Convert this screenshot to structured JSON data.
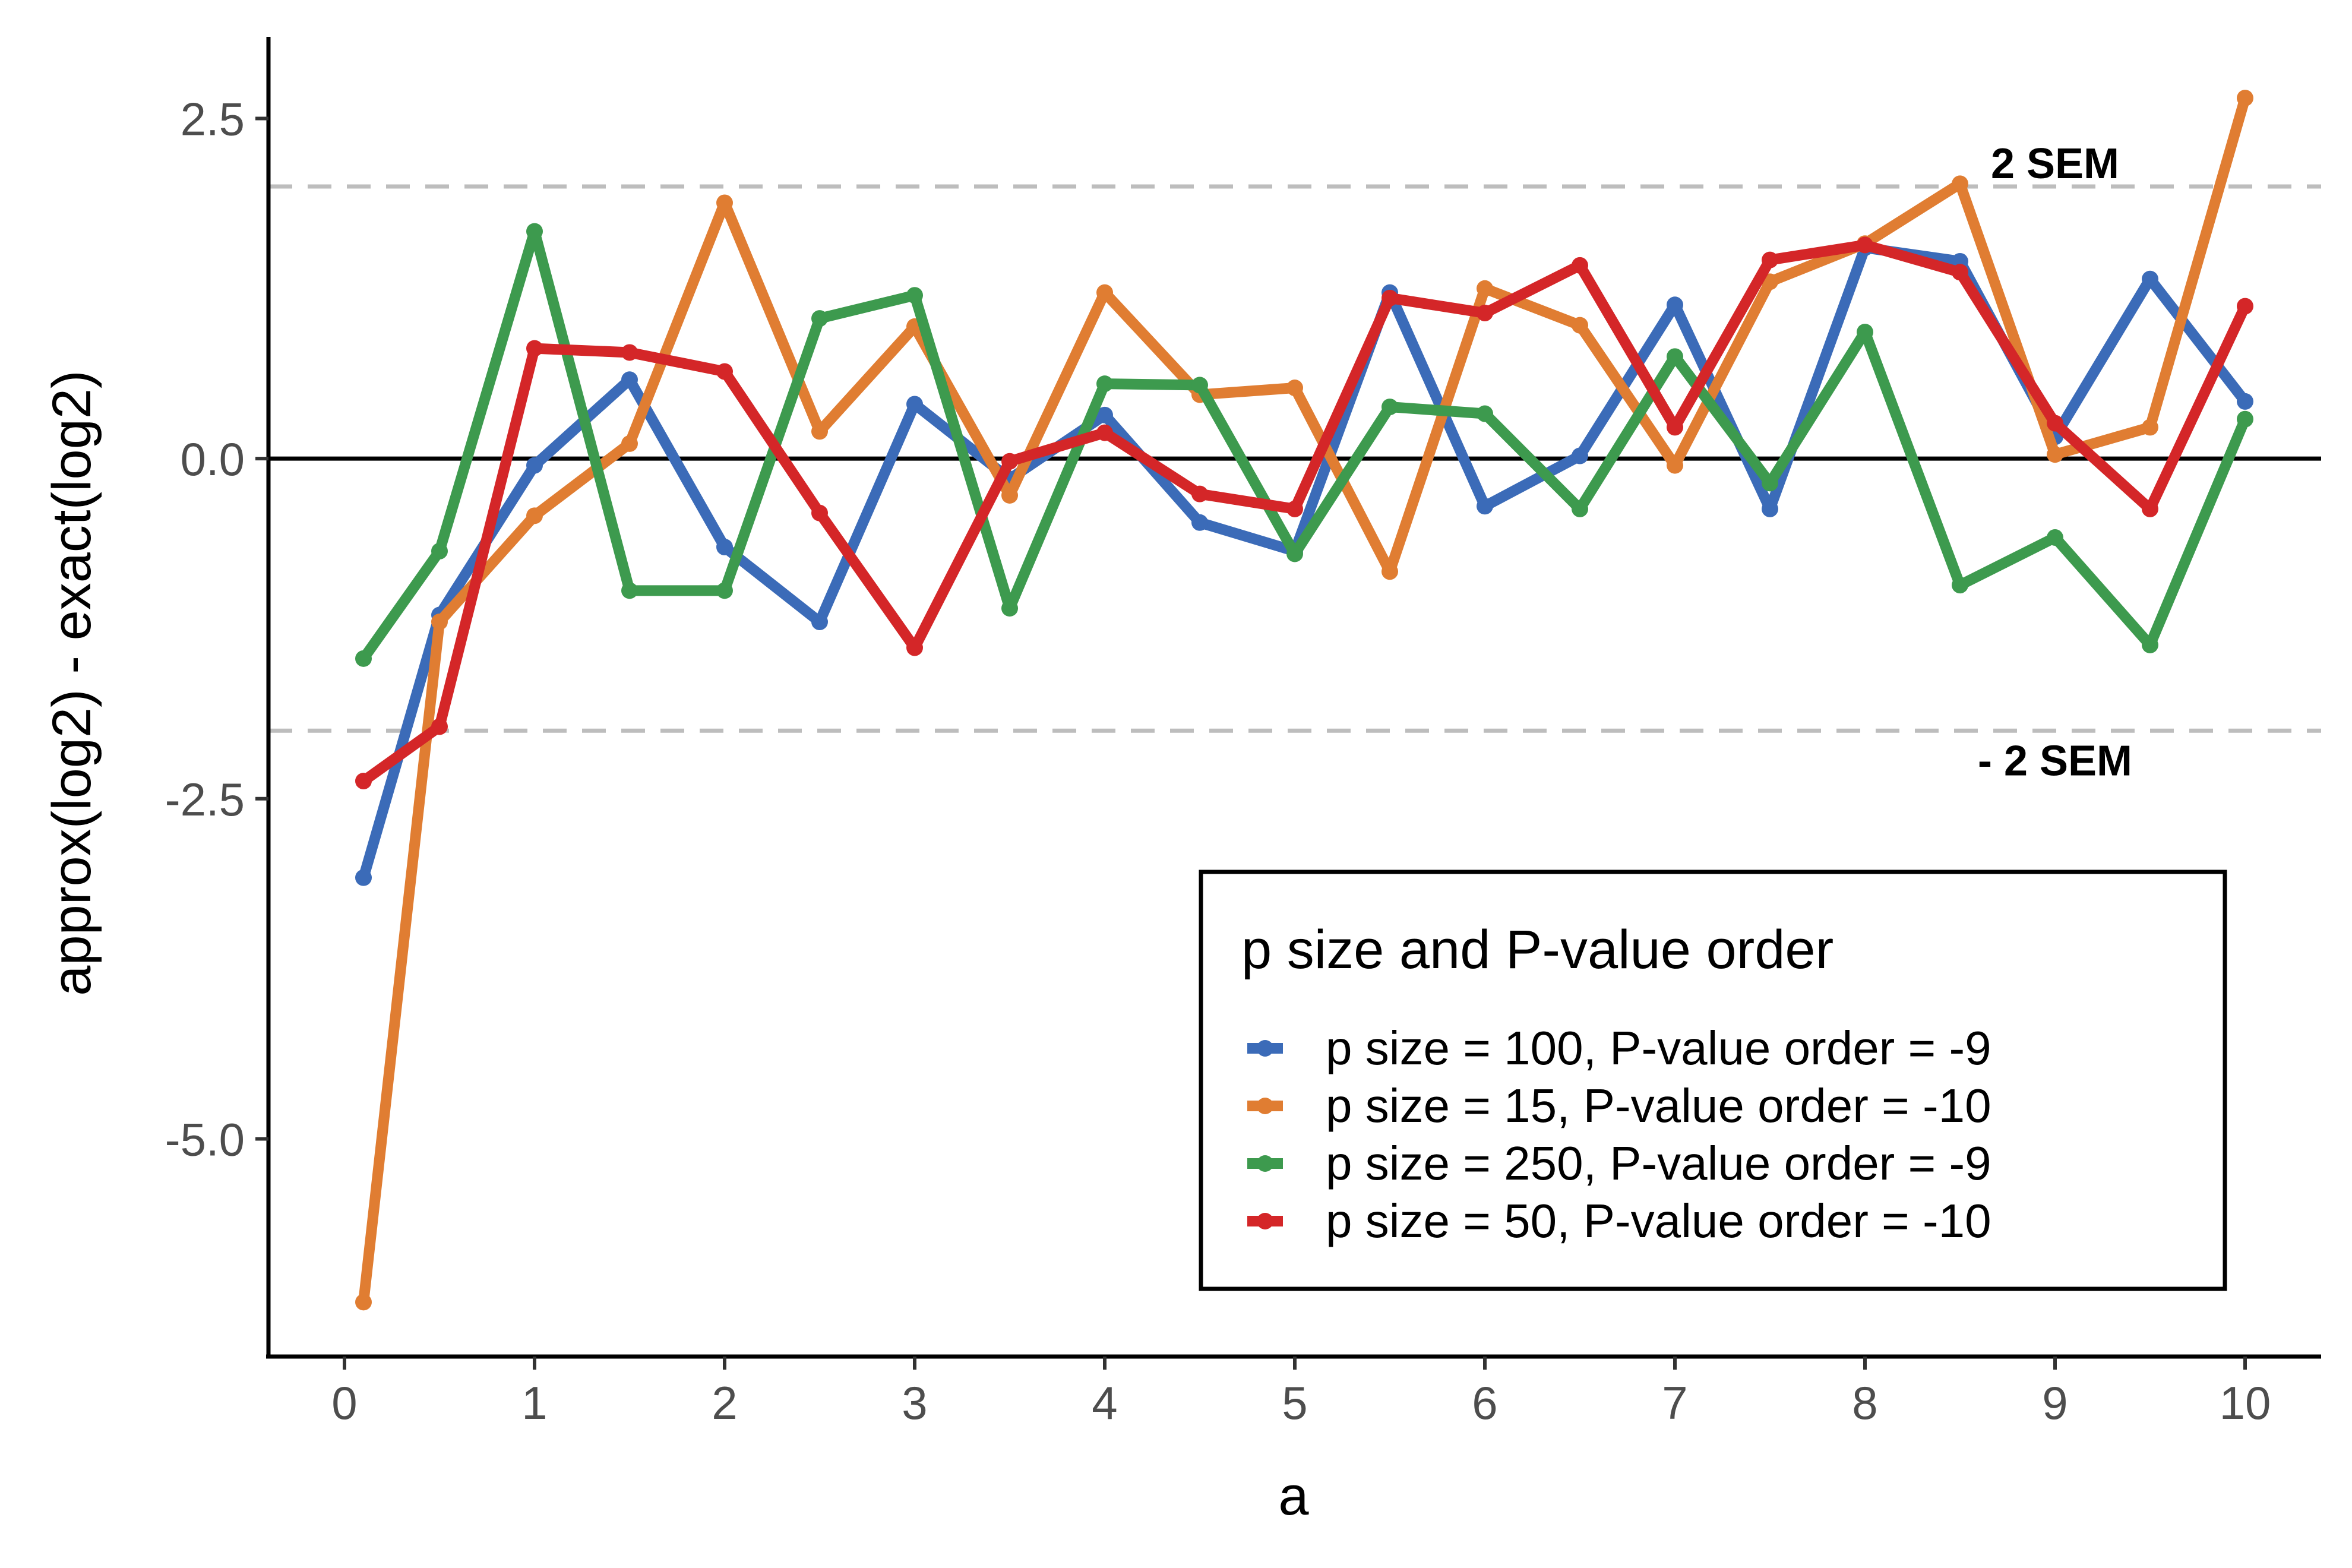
{
  "chart_data": {
    "type": "line",
    "xlabel": "a",
    "ylabel": "approx(log2) - exact(log2)",
    "xlim": [
      -0.4,
      10.4
    ],
    "ylim": [
      -6.6,
      3.1
    ],
    "xticks": [
      0,
      1,
      2,
      3,
      4,
      5,
      6,
      7,
      8,
      9,
      10
    ],
    "xtick_labels": [
      "0",
      "1",
      "2",
      "3",
      "4",
      "5",
      "6",
      "7",
      "8",
      "9",
      "10"
    ],
    "yticks": [
      2.5,
      0.0,
      -2.5,
      -5.0
    ],
    "ytick_labels": [
      "2.5",
      "0.0",
      "-2.5",
      "-5.0"
    ],
    "grid": false,
    "x": [
      0.1,
      0.5,
      1,
      1.5,
      2,
      2.5,
      3,
      3.5,
      4,
      4.5,
      5,
      5.5,
      6,
      6.5,
      7,
      7.5,
      8,
      8.5,
      9,
      9.5,
      10
    ],
    "series": [
      {
        "name": "p size = 100, P-value order = -9",
        "color": "#3b6bb8",
        "values": [
          -3.08,
          -1.15,
          -0.05,
          0.58,
          -0.65,
          -1.2,
          0.4,
          -0.15,
          0.32,
          -0.47,
          -0.68,
          1.22,
          -0.35,
          0.02,
          1.13,
          -0.37,
          1.55,
          1.45,
          0.16,
          1.32,
          0.42
        ]
      },
      {
        "name": "p size = 15, P-value order = -10",
        "color": "#e07d32",
        "values": [
          -6.2,
          -1.2,
          -0.42,
          0.11,
          1.88,
          0.2,
          0.97,
          -0.27,
          1.22,
          0.47,
          0.52,
          -0.83,
          1.25,
          0.98,
          -0.05,
          1.3,
          1.58,
          2.02,
          0.03,
          0.23,
          2.65
        ]
      },
      {
        "name": "p size = 250, P-value order = -9",
        "color": "#3d9a4e",
        "values": [
          -1.47,
          -0.68,
          1.67,
          -0.97,
          -0.97,
          1.03,
          1.2,
          -1.1,
          0.55,
          0.54,
          -0.7,
          0.38,
          0.33,
          -0.37,
          0.75,
          -0.18,
          0.93,
          -0.93,
          -0.58,
          -1.37,
          0.29
        ]
      },
      {
        "name": "p size = 50, P-value order = -10",
        "color": "#d42628",
        "values": [
          -2.37,
          -1.97,
          0.81,
          0.78,
          0.64,
          -0.4,
          -1.39,
          -0.02,
          0.19,
          -0.26,
          -0.37,
          1.18,
          1.07,
          1.42,
          0.23,
          1.46,
          1.57,
          1.37,
          0.26,
          -0.37,
          1.12
        ]
      }
    ],
    "hlines": [
      {
        "y": 0,
        "style": "solid",
        "color": "#000000"
      },
      {
        "y": 2,
        "style": "dashed",
        "color": "#bdbdbd"
      },
      {
        "y": -2,
        "style": "dashed",
        "color": "#bdbdbd"
      }
    ],
    "annotations": [
      {
        "text": "2 SEM",
        "x": 9.0,
        "y": 2.17
      },
      {
        "text": "- 2 SEM",
        "x": 9.0,
        "y": -2.22
      }
    ],
    "legend": {
      "title": "p size and P-value order",
      "position": "bottom-right"
    }
  }
}
